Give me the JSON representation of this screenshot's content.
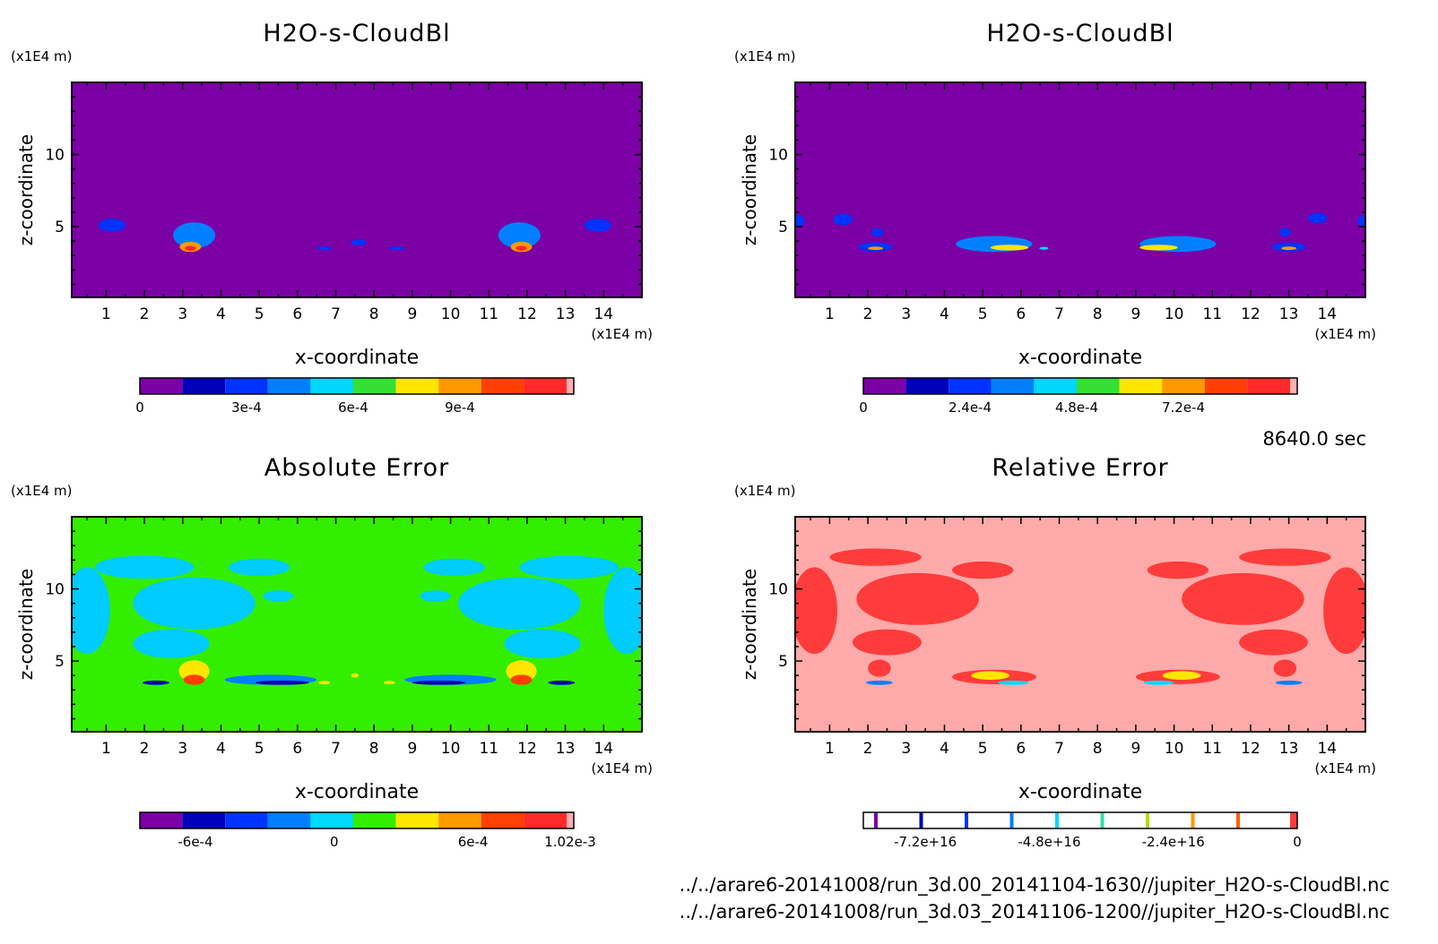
{
  "time_label": "8640.0 sec",
  "files": [
    "../../arare6-20141008/run_3d.00_20141104-1630//jupiter_H2O-s-CloudBl.nc",
    "../../arare6-20141008/run_3d.03_20141106-1200//jupiter_H2O-s-CloudBl.nc"
  ],
  "chart_data": [
    {
      "type": "heatmap",
      "title": "H2O-s-CloudBl",
      "xlabel": "x-coordinate",
      "ylabel": "z-coordinate",
      "x_unit": "(x1E4 m)",
      "y_unit": "(x1E4 m)",
      "xlim": [
        0.1,
        15.0
      ],
      "ylim": [
        0.1,
        15.0
      ],
      "x_ticks": [
        1,
        2,
        3,
        4,
        5,
        6,
        7,
        8,
        9,
        10,
        11,
        12,
        13,
        14
      ],
      "y_ticks": [
        5,
        10
      ],
      "background_color": "#7b00a6",
      "colorbar": {
        "colors": [
          "#7b00a6",
          "#0000b8",
          "#0033ff",
          "#0080ff",
          "#00d8ff",
          "#33e033",
          "#ffe600",
          "#ff9900",
          "#ff4000",
          "#ff2a2a",
          "#ffb0b0"
        ],
        "tick_values": [
          0,
          0.0003,
          0.0006,
          0.0009
        ],
        "tick_labels": [
          "0",
          "3e-4",
          "6e-4",
          "9e-4"
        ]
      },
      "features": [
        {
          "x": 1.15,
          "z": 5.1,
          "rx": 0.35,
          "rz": 0.45,
          "color": "#0033ff"
        },
        {
          "x": 3.3,
          "z": 4.4,
          "rx": 0.55,
          "rz": 0.9,
          "color": "#0080ff"
        },
        {
          "x": 3.2,
          "z": 3.6,
          "rx": 0.28,
          "rz": 0.35,
          "color": "#ff9900"
        },
        {
          "x": 3.2,
          "z": 3.5,
          "rx": 0.14,
          "rz": 0.18,
          "color": "#ff2a2a"
        },
        {
          "x": 7.6,
          "z": 3.9,
          "rx": 0.2,
          "rz": 0.22,
          "color": "#0033ff"
        },
        {
          "x": 6.7,
          "z": 3.5,
          "rx": 0.2,
          "rz": 0.12,
          "color": "#0033ff"
        },
        {
          "x": 8.6,
          "z": 3.5,
          "rx": 0.2,
          "rz": 0.12,
          "color": "#0033ff"
        },
        {
          "x": 11.8,
          "z": 4.4,
          "rx": 0.55,
          "rz": 0.9,
          "color": "#0080ff"
        },
        {
          "x": 11.85,
          "z": 3.6,
          "rx": 0.28,
          "rz": 0.35,
          "color": "#ff9900"
        },
        {
          "x": 11.85,
          "z": 3.5,
          "rx": 0.14,
          "rz": 0.18,
          "color": "#ff2a2a"
        },
        {
          "x": 13.85,
          "z": 5.1,
          "rx": 0.35,
          "rz": 0.45,
          "color": "#0033ff"
        }
      ]
    },
    {
      "type": "heatmap",
      "title": "H2O-s-CloudBl",
      "xlabel": "x-coordinate",
      "ylabel": "z-coordinate",
      "x_unit": "(x1E4 m)",
      "y_unit": "(x1E4 m)",
      "xlim": [
        0.1,
        15.0
      ],
      "ylim": [
        0.1,
        15.0
      ],
      "x_ticks": [
        1,
        2,
        3,
        4,
        5,
        6,
        7,
        8,
        9,
        10,
        11,
        12,
        13,
        14
      ],
      "y_ticks": [
        5,
        10
      ],
      "background_color": "#7b00a6",
      "colorbar": {
        "colors": [
          "#7b00a6",
          "#0000b8",
          "#0033ff",
          "#0080ff",
          "#00d8ff",
          "#33e033",
          "#ffe600",
          "#ff9900",
          "#ff4000",
          "#ff2a2a",
          "#ffb0b0"
        ],
        "tick_values": [
          0,
          0.00024,
          0.00048,
          0.00072
        ],
        "tick_labels": [
          "0",
          "2.4e-4",
          "4.8e-4",
          "7.2e-4"
        ]
      },
      "features": [
        {
          "x": 0.15,
          "z": 5.4,
          "rx": 0.2,
          "rz": 0.4,
          "color": "#0033ff"
        },
        {
          "x": 1.35,
          "z": 5.5,
          "rx": 0.25,
          "rz": 0.4,
          "color": "#0033ff"
        },
        {
          "x": 2.25,
          "z": 4.6,
          "rx": 0.15,
          "rz": 0.3,
          "color": "#0033ff"
        },
        {
          "x": 2.2,
          "z": 3.6,
          "rx": 0.45,
          "rz": 0.3,
          "color": "#0033ff"
        },
        {
          "x": 2.2,
          "z": 3.5,
          "rx": 0.2,
          "rz": 0.12,
          "color": "#ff9900"
        },
        {
          "x": 5.3,
          "z": 3.8,
          "rx": 1.0,
          "rz": 0.55,
          "color": "#0080ff"
        },
        {
          "x": 5.7,
          "z": 3.55,
          "rx": 0.5,
          "rz": 0.2,
          "color": "#ffe600"
        },
        {
          "x": 6.6,
          "z": 3.5,
          "rx": 0.12,
          "rz": 0.1,
          "color": "#00d8ff"
        },
        {
          "x": 10.1,
          "z": 3.8,
          "rx": 1.0,
          "rz": 0.55,
          "color": "#0080ff"
        },
        {
          "x": 9.6,
          "z": 3.55,
          "rx": 0.5,
          "rz": 0.2,
          "color": "#ffe600"
        },
        {
          "x": 12.9,
          "z": 4.6,
          "rx": 0.15,
          "rz": 0.3,
          "color": "#0033ff"
        },
        {
          "x": 13.0,
          "z": 3.6,
          "rx": 0.45,
          "rz": 0.3,
          "color": "#0033ff"
        },
        {
          "x": 13.0,
          "z": 3.5,
          "rx": 0.2,
          "rz": 0.12,
          "color": "#ff9900"
        },
        {
          "x": 13.75,
          "z": 5.6,
          "rx": 0.25,
          "rz": 0.35,
          "color": "#0033ff"
        },
        {
          "x": 14.95,
          "z": 5.4,
          "rx": 0.15,
          "rz": 0.4,
          "color": "#0033ff"
        }
      ]
    },
    {
      "type": "heatmap",
      "title": "Absolute Error",
      "xlabel": "x-coordinate",
      "ylabel": "z-coordinate",
      "x_unit": "(x1E4 m)",
      "y_unit": "(x1E4 m)",
      "xlim": [
        0.1,
        15.0
      ],
      "ylim": [
        0.1,
        15.0
      ],
      "x_ticks": [
        1,
        2,
        3,
        4,
        5,
        6,
        7,
        8,
        9,
        10,
        11,
        12,
        13,
        14
      ],
      "y_ticks": [
        5,
        10
      ],
      "background_color": "#33ee00",
      "colorbar": {
        "colors": [
          "#7b00a6",
          "#0000b8",
          "#0033ff",
          "#0080ff",
          "#00d8ff",
          "#33ee00",
          "#ffe600",
          "#ff9900",
          "#ff4000",
          "#ff2a2a",
          "#ffb0b0"
        ],
        "tick_values": [
          -0.0006,
          0,
          0.0006,
          0.00102
        ],
        "tick_labels": [
          "-6e-4",
          "0",
          "6e-4",
          "1.02e-3"
        ]
      },
      "features": [
        {
          "x": 0.5,
          "z": 8.5,
          "rx": 0.6,
          "rz": 3.0,
          "color": "#00ccff"
        },
        {
          "x": 2.0,
          "z": 11.5,
          "rx": 1.3,
          "rz": 0.8,
          "color": "#00ccff"
        },
        {
          "x": 3.3,
          "z": 9.0,
          "rx": 1.6,
          "rz": 1.8,
          "color": "#00ccff"
        },
        {
          "x": 5.0,
          "z": 11.5,
          "rx": 0.8,
          "rz": 0.6,
          "color": "#00ccff"
        },
        {
          "x": 5.5,
          "z": 9.5,
          "rx": 0.4,
          "rz": 0.4,
          "color": "#00ccff"
        },
        {
          "x": 2.7,
          "z": 6.2,
          "rx": 1.0,
          "rz": 1.0,
          "color": "#00ccff"
        },
        {
          "x": 3.3,
          "z": 4.3,
          "rx": 0.4,
          "rz": 0.75,
          "color": "#ffe600"
        },
        {
          "x": 3.3,
          "z": 3.7,
          "rx": 0.28,
          "rz": 0.35,
          "color": "#ff4000"
        },
        {
          "x": 2.3,
          "z": 3.5,
          "rx": 0.35,
          "rz": 0.15,
          "color": "#0000b8"
        },
        {
          "x": 5.3,
          "z": 3.7,
          "rx": 1.2,
          "rz": 0.35,
          "color": "#0080ff"
        },
        {
          "x": 5.6,
          "z": 3.5,
          "rx": 0.7,
          "rz": 0.15,
          "color": "#0000b8"
        },
        {
          "x": 6.7,
          "z": 3.5,
          "rx": 0.15,
          "rz": 0.12,
          "color": "#ffe600"
        },
        {
          "x": 7.5,
          "z": 4.0,
          "rx": 0.1,
          "rz": 0.15,
          "color": "#ffe600"
        },
        {
          "x": 8.4,
          "z": 3.5,
          "rx": 0.15,
          "rz": 0.12,
          "color": "#ffe600"
        },
        {
          "x": 10.0,
          "z": 3.7,
          "rx": 1.2,
          "rz": 0.35,
          "color": "#0080ff"
        },
        {
          "x": 9.7,
          "z": 3.5,
          "rx": 0.7,
          "rz": 0.15,
          "color": "#0000b8"
        },
        {
          "x": 11.85,
          "z": 4.3,
          "rx": 0.4,
          "rz": 0.75,
          "color": "#ffe600"
        },
        {
          "x": 11.85,
          "z": 3.7,
          "rx": 0.28,
          "rz": 0.35,
          "color": "#ff4000"
        },
        {
          "x": 12.9,
          "z": 3.5,
          "rx": 0.35,
          "rz": 0.15,
          "color": "#0000b8"
        },
        {
          "x": 12.4,
          "z": 6.2,
          "rx": 1.0,
          "rz": 1.0,
          "color": "#00ccff"
        },
        {
          "x": 11.8,
          "z": 9.0,
          "rx": 1.6,
          "rz": 1.8,
          "color": "#00ccff"
        },
        {
          "x": 10.1,
          "z": 11.5,
          "rx": 0.8,
          "rz": 0.6,
          "color": "#00ccff"
        },
        {
          "x": 9.6,
          "z": 9.5,
          "rx": 0.4,
          "rz": 0.4,
          "color": "#00ccff"
        },
        {
          "x": 13.1,
          "z": 11.5,
          "rx": 1.3,
          "rz": 0.8,
          "color": "#00ccff"
        },
        {
          "x": 14.6,
          "z": 8.5,
          "rx": 0.6,
          "rz": 3.0,
          "color": "#00ccff"
        }
      ]
    },
    {
      "type": "heatmap",
      "title": "Relative Error",
      "xlabel": "x-coordinate",
      "ylabel": "z-coordinate",
      "x_unit": "(x1E4 m)",
      "y_unit": "(x1E4 m)",
      "xlim": [
        0.1,
        15.0
      ],
      "ylim": [
        0.1,
        15.0
      ],
      "x_ticks": [
        1,
        2,
        3,
        4,
        5,
        6,
        7,
        8,
        9,
        10,
        11,
        12,
        13,
        14
      ],
      "y_ticks": [
        5,
        10
      ],
      "background_color": "#ffaaaa",
      "colorbar": {
        "colors": [
          "#ffffff",
          "#ffffff",
          "#ffffff",
          "#ffffff",
          "#ffffff",
          "#ffffff",
          "#ffffff",
          "#ffffff",
          "#ffffff",
          "#ffffff",
          "#ff3c3c"
        ],
        "line_colors": [
          "#7b00a6",
          "#0000b8",
          "#0033ff",
          "#0080ff",
          "#00d8ff",
          "#33e0a0",
          "#b0e000",
          "#ff9900",
          "#ff6000"
        ],
        "tick_values": [
          -7.2e+16,
          -4.8e+16,
          -2.4e+16,
          0
        ],
        "tick_labels": [
          "-7.2e+16",
          "-4.8e+16",
          "-2.4e+16",
          "0"
        ]
      },
      "features": [
        {
          "x": 0.6,
          "z": 8.5,
          "rx": 0.6,
          "rz": 3.0,
          "color": "#ff3c3c"
        },
        {
          "x": 2.2,
          "z": 12.2,
          "rx": 1.2,
          "rz": 0.6,
          "color": "#ff3c3c"
        },
        {
          "x": 3.3,
          "z": 9.3,
          "rx": 1.6,
          "rz": 1.8,
          "color": "#ff3c3c"
        },
        {
          "x": 5.0,
          "z": 11.3,
          "rx": 0.8,
          "rz": 0.6,
          "color": "#ff3c3c"
        },
        {
          "x": 2.5,
          "z": 6.3,
          "rx": 0.9,
          "rz": 0.9,
          "color": "#ff3c3c"
        },
        {
          "x": 2.3,
          "z": 4.5,
          "rx": 0.3,
          "rz": 0.6,
          "color": "#ff3c3c"
        },
        {
          "x": 2.3,
          "z": 3.5,
          "rx": 0.35,
          "rz": 0.15,
          "color": "#0080ff"
        },
        {
          "x": 5.3,
          "z": 3.9,
          "rx": 1.1,
          "rz": 0.5,
          "color": "#ff3c3c"
        },
        {
          "x": 5.2,
          "z": 4.0,
          "rx": 0.5,
          "rz": 0.3,
          "color": "#ffe600"
        },
        {
          "x": 5.8,
          "z": 3.5,
          "rx": 0.4,
          "rz": 0.15,
          "color": "#00d8ff"
        },
        {
          "x": 10.1,
          "z": 3.9,
          "rx": 1.1,
          "rz": 0.5,
          "color": "#ff3c3c"
        },
        {
          "x": 10.2,
          "z": 4.0,
          "rx": 0.5,
          "rz": 0.3,
          "color": "#ffe600"
        },
        {
          "x": 9.6,
          "z": 3.5,
          "rx": 0.4,
          "rz": 0.15,
          "color": "#00d8ff"
        },
        {
          "x": 12.9,
          "z": 4.5,
          "rx": 0.3,
          "rz": 0.6,
          "color": "#ff3c3c"
        },
        {
          "x": 13.0,
          "z": 3.5,
          "rx": 0.35,
          "rz": 0.15,
          "color": "#0080ff"
        },
        {
          "x": 12.6,
          "z": 6.3,
          "rx": 0.9,
          "rz": 0.9,
          "color": "#ff3c3c"
        },
        {
          "x": 11.8,
          "z": 9.3,
          "rx": 1.6,
          "rz": 1.8,
          "color": "#ff3c3c"
        },
        {
          "x": 10.1,
          "z": 11.3,
          "rx": 0.8,
          "rz": 0.6,
          "color": "#ff3c3c"
        },
        {
          "x": 12.9,
          "z": 12.2,
          "rx": 1.2,
          "rz": 0.6,
          "color": "#ff3c3c"
        },
        {
          "x": 14.5,
          "z": 8.5,
          "rx": 0.6,
          "rz": 3.0,
          "color": "#ff3c3c"
        }
      ]
    }
  ]
}
